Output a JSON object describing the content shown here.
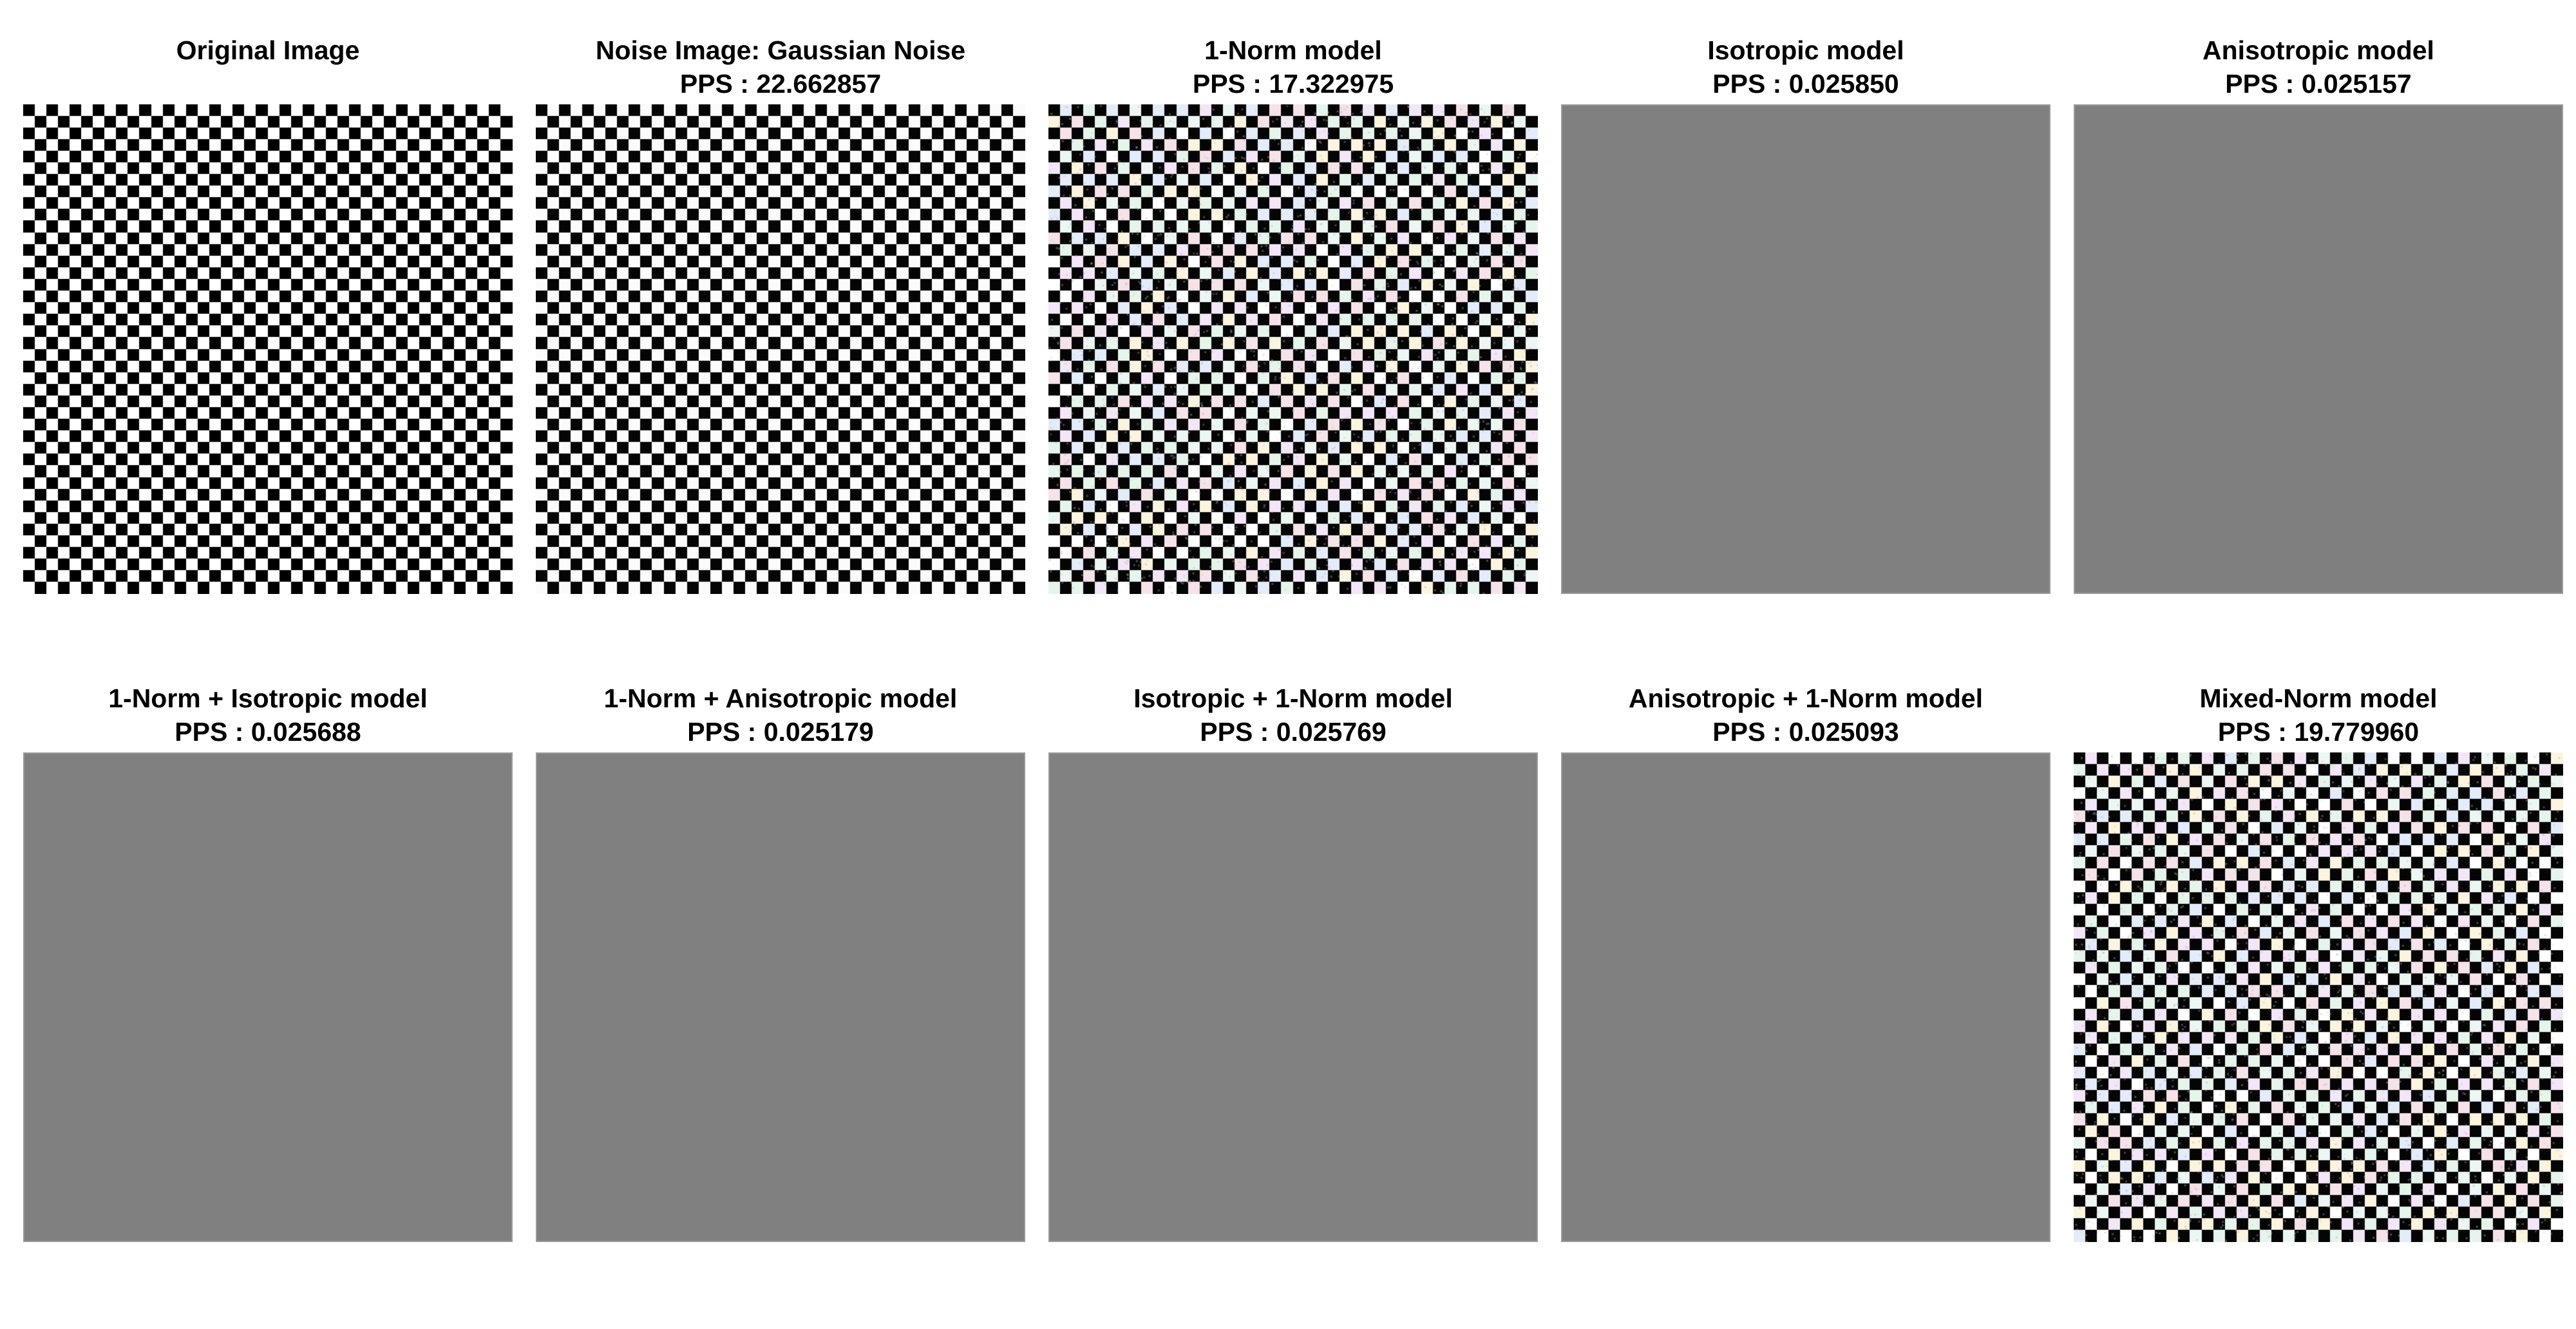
{
  "figure": {
    "panels": [
      {
        "title": "Original Image",
        "subtitle": "",
        "image": {
          "kind": "checkerboard",
          "squares_per_side": 42,
          "noise": "none"
        }
      },
      {
        "title": "Noise Image: Gaussian Noise",
        "subtitle": "PPS : 22.662857",
        "image": {
          "kind": "checkerboard",
          "squares_per_side": 42,
          "noise": "slight"
        }
      },
      {
        "title": "1-Norm model",
        "subtitle": "PPS : 17.322975",
        "image": {
          "kind": "checkerboard",
          "squares_per_side": 42,
          "noise": "colored"
        }
      },
      {
        "title": "Isotropic model",
        "subtitle": "PPS : 0.025850",
        "image": {
          "kind": "flat-gray",
          "color": "#808080"
        }
      },
      {
        "title": "Anisotropic model",
        "subtitle": "PPS : 0.025157",
        "image": {
          "kind": "flat-gray",
          "color": "#7f7f7f"
        }
      },
      {
        "title": "1-Norm + Isotropic model",
        "subtitle": "PPS : 0.025688",
        "image": {
          "kind": "flat-gray",
          "color": "#808080"
        }
      },
      {
        "title": "1-Norm + Anisotropic model",
        "subtitle": "PPS : 0.025179",
        "image": {
          "kind": "flat-gray",
          "color": "#808080"
        }
      },
      {
        "title": "Isotropic + 1-Norm model",
        "subtitle": "PPS : 0.025769",
        "image": {
          "kind": "flat-gray",
          "color": "#818181"
        }
      },
      {
        "title": "Anisotropic + 1-Norm model",
        "subtitle": "PPS : 0.025093",
        "image": {
          "kind": "flat-gray",
          "color": "#808080"
        }
      },
      {
        "title": "Mixed-Norm model",
        "subtitle": "PPS : 19.779960",
        "image": {
          "kind": "checkerboard",
          "squares_per_side": 42,
          "noise": "colored"
        }
      }
    ]
  }
}
